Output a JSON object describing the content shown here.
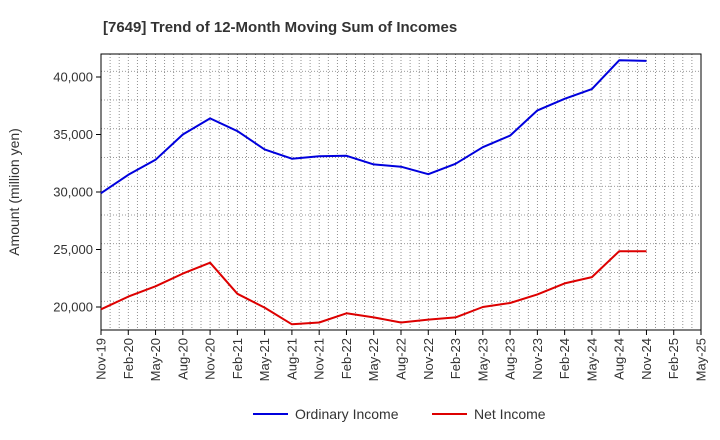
{
  "chart_data": {
    "type": "line",
    "title": "[7649]  Trend of 12-Month Moving Sum of Incomes",
    "xlabel": "",
    "ylabel": "Amount (million yen)",
    "categories": [
      "Nov-19",
      "Feb-20",
      "May-20",
      "Aug-20",
      "Nov-20",
      "Feb-21",
      "May-21",
      "Aug-21",
      "Nov-21",
      "Feb-22",
      "May-22",
      "Aug-22",
      "Nov-22",
      "Feb-23",
      "May-23",
      "Aug-23",
      "Nov-23",
      "Feb-24",
      "May-24",
      "Aug-24",
      "Nov-24",
      "Feb-25",
      "May-25"
    ],
    "ylim": [
      18000,
      42000
    ],
    "yticks": [
      20000,
      25000,
      30000,
      35000,
      40000
    ],
    "ytick_labels": [
      "20,000",
      "25,000",
      "30,000",
      "35,000",
      "40,000"
    ],
    "grid": true,
    "legend_position": "bottom",
    "series": [
      {
        "name": "Ordinary Income",
        "color": "#0000dd",
        "values": [
          29900,
          31500,
          32800,
          35000,
          36400,
          35300,
          33700,
          32900,
          33100,
          33150,
          32400,
          32200,
          31550,
          32450,
          33900,
          34900,
          37100,
          38100,
          38950,
          41450,
          41400,
          null,
          null
        ]
      },
      {
        "name": "Net Income",
        "color": "#dd0000",
        "values": [
          19800,
          20900,
          21800,
          22900,
          23850,
          21150,
          19950,
          18500,
          18650,
          19450,
          19100,
          18650,
          18900,
          19100,
          20000,
          20350,
          21100,
          22050,
          22600,
          24850,
          24850,
          null,
          null
        ]
      }
    ]
  }
}
